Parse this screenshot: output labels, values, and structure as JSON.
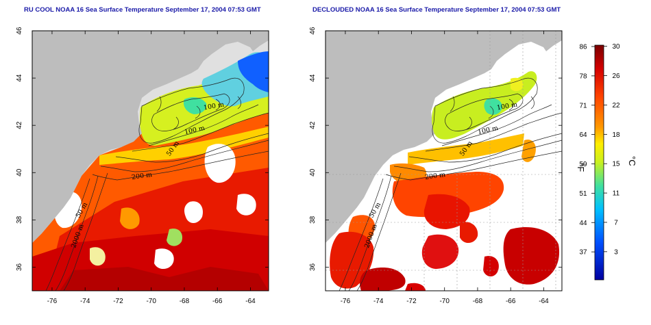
{
  "panels": [
    {
      "title": "RU COOL NOAA 16 Sea Surface Temperature September 17, 2004 07:53 GMT",
      "variant": "raw"
    },
    {
      "title": "DECLOUDED NOAA 16 Sea Surface Temperature September 17, 2004 07:53 GMT",
      "variant": "declouded"
    }
  ],
  "axes": {
    "lon_ticks": [
      "-76",
      "-74",
      "-72",
      "-70",
      "-68",
      "-66",
      "-64"
    ],
    "lat_ticks": [
      "46",
      "44",
      "42",
      "40",
      "38",
      "36"
    ],
    "lon_range": [
      -77.2,
      -62.9
    ],
    "lat_range": [
      35.0,
      46.0
    ]
  },
  "contour_labels": [
    "100 m",
    "100 m",
    "50 m",
    "200 m",
    "50 m",
    "2000 m"
  ],
  "colorbar": {
    "fahrenheit_ticks": [
      "86",
      "78",
      "71",
      "64",
      "59",
      "51",
      "44",
      "37"
    ],
    "celsius_ticks": [
      "30",
      "26",
      "22",
      "18",
      "15",
      "11",
      "7",
      "3"
    ],
    "fahrenheit_label": "°F",
    "celsius_label": "°C",
    "colors": [
      "#7a0000",
      "#d40000",
      "#ff4400",
      "#ff9900",
      "#ffee00",
      "#c8f020",
      "#40e0a0",
      "#00c0ff",
      "#0050ff",
      "#0000a0"
    ]
  },
  "colors": {
    "land": "#bdbdbd",
    "cloud": "#ffffff",
    "title": "#1a1aa8"
  }
}
